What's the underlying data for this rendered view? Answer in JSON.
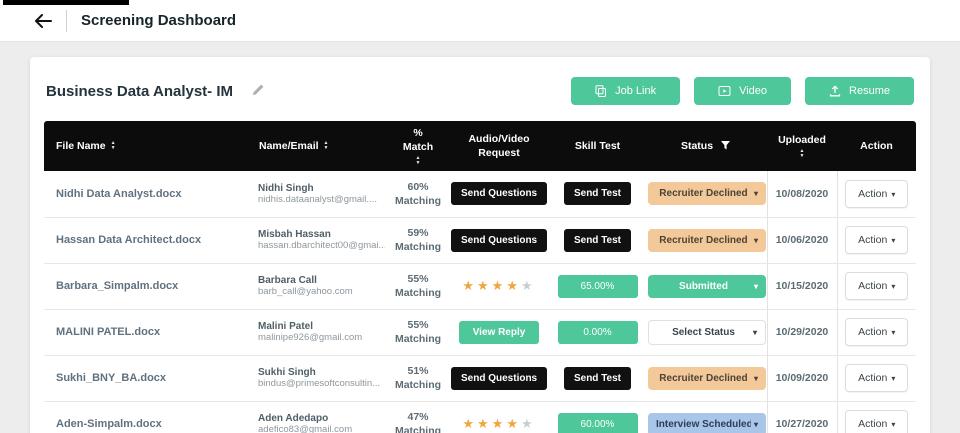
{
  "topbar": {
    "title": "Screening Dashboard"
  },
  "card": {
    "job_title": "Business Data Analyst- IM",
    "buttons": [
      {
        "label": "Job Link",
        "icon": "copy-icon"
      },
      {
        "label": "Video",
        "icon": "video-icon"
      },
      {
        "label": "Resume",
        "icon": "upload-icon"
      }
    ]
  },
  "colors": {
    "accent_green": "#4ec79a",
    "header_black": "#0c0c0c",
    "status_declined": "#f4c999",
    "status_submitted": "#4ec79a",
    "status_interview": "#a9c5e8",
    "star_filled": "#f0a63f"
  },
  "table": {
    "action_label": "Action",
    "columns": [
      {
        "label": "File Name",
        "sort": "inline"
      },
      {
        "label": "Name/Email",
        "sort": "inline"
      },
      {
        "label": "% Match",
        "sort": "below"
      },
      {
        "label": "Audio/Video Request"
      },
      {
        "label": "Skill Test"
      },
      {
        "label": "Status",
        "filter": true
      },
      {
        "label": "Uploaded",
        "sort": "below"
      },
      {
        "label": "Action"
      }
    ],
    "rows": [
      {
        "file": "Nidhi Data Analyst.docx",
        "name": "Nidhi Singh",
        "email": "nidhis.dataanalyst@gmail....",
        "match": {
          "value": "60%",
          "label": "Matching"
        },
        "audio": {
          "type": "dark",
          "label": "Send Questions",
          "name": "send-questions-button"
        },
        "skill": {
          "type": "dark",
          "label": "Send Test",
          "name": "send-test-button"
        },
        "status": {
          "label": "Recruiter Declined",
          "variant": "declined"
        },
        "uploaded": "10/08/2020"
      },
      {
        "file": "Hassan Data Architect.docx",
        "name": "Misbah Hassan",
        "email": "hassan.dbarchitect00@gmai...",
        "match": {
          "value": "59%",
          "label": "Matching"
        },
        "audio": {
          "type": "dark",
          "label": "Send Questions",
          "name": "send-questions-button"
        },
        "skill": {
          "type": "dark",
          "label": "Send Test",
          "name": "send-test-button"
        },
        "status": {
          "label": "Recruiter Declined",
          "variant": "declined"
        },
        "uploaded": "10/06/2020"
      },
      {
        "file": "Barbara_Simpalm.docx",
        "name": "Barbara Call",
        "email": "barb_call@yahoo.com",
        "match": {
          "value": "55%",
          "label": "Matching"
        },
        "audio": {
          "type": "stars",
          "filled": 4,
          "total": 5
        },
        "skill": {
          "type": "badge",
          "label": "65.00%"
        },
        "status": {
          "label": "Submitted",
          "variant": "submitted"
        },
        "uploaded": "10/15/2020"
      },
      {
        "file": "MALINI PATEL.docx",
        "name": "Malini Patel",
        "email": "malinipe926@gmail.com",
        "match": {
          "value": "55%",
          "label": "Matching"
        },
        "audio": {
          "type": "green",
          "label": "View Reply",
          "name": "view-reply-button"
        },
        "skill": {
          "type": "badge",
          "label": "0.00%"
        },
        "status": {
          "label": "Select Status",
          "variant": "plain"
        },
        "uploaded": "10/29/2020"
      },
      {
        "file": "Sukhi_BNY_BA.docx",
        "name": "Sukhi Singh",
        "email": "bindus@primesoftconsultin...",
        "match": {
          "value": "51%",
          "label": "Matching"
        },
        "audio": {
          "type": "dark",
          "label": "Send Questions",
          "name": "send-questions-button"
        },
        "skill": {
          "type": "dark",
          "label": "Send Test",
          "name": "send-test-button"
        },
        "status": {
          "label": "Recruiter Declined",
          "variant": "declined"
        },
        "uploaded": "10/09/2020"
      },
      {
        "file": "Aden-Simpalm.docx",
        "name": "Aden Adedapo",
        "email": "adefico83@gmail.com",
        "match": {
          "value": "47%",
          "label": "Matching"
        },
        "audio": {
          "type": "stars",
          "filled": 4,
          "total": 5
        },
        "skill": {
          "type": "badge",
          "label": "60.00%"
        },
        "status": {
          "label": "Interview Scheduled",
          "variant": "interview"
        },
        "uploaded": "10/27/2020"
      }
    ]
  }
}
